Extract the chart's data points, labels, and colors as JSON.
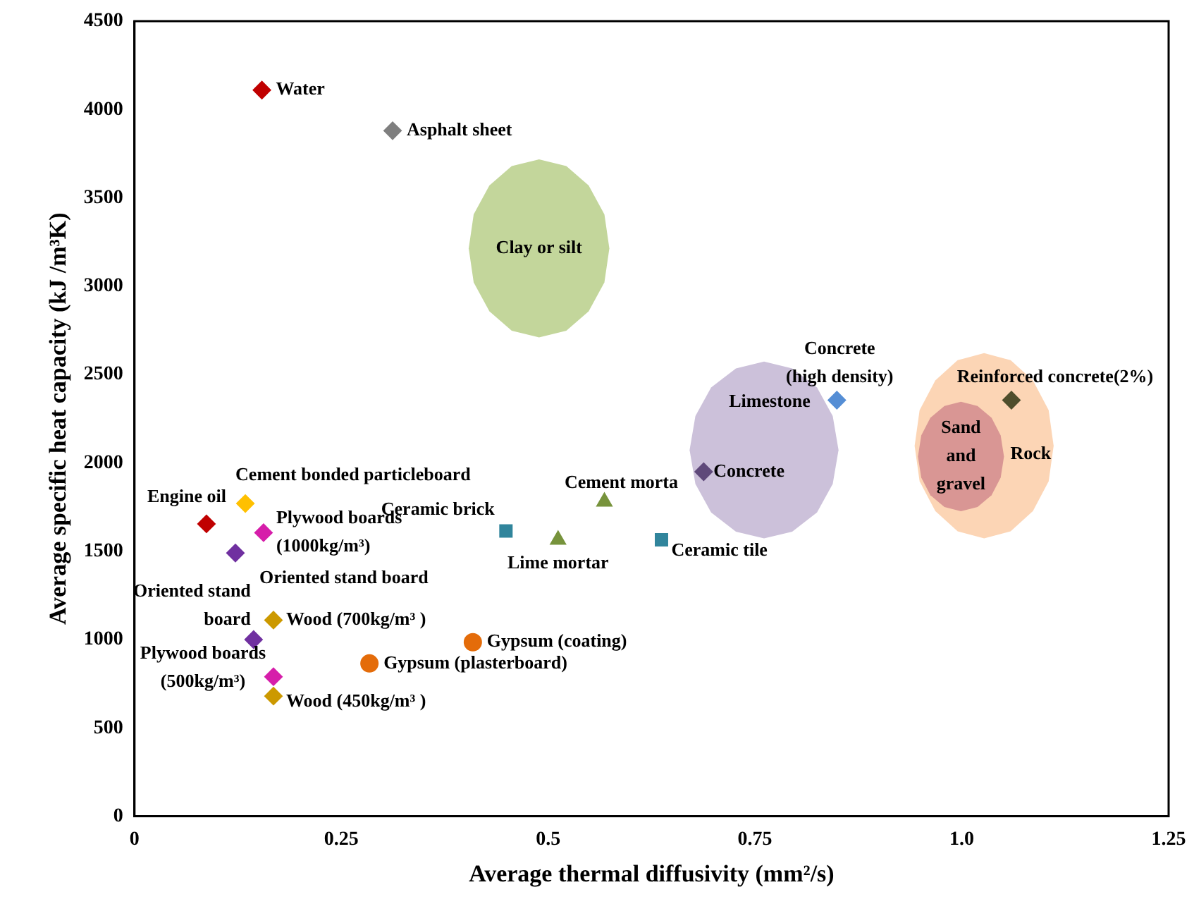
{
  "chart_data": {
    "type": "scatter",
    "xlabel": "Average thermal diffusivity (mm²/s)",
    "ylabel": "Average specific heat capacity (kJ /m³K)",
    "xlim": [
      0,
      1.25
    ],
    "xticks": [
      0,
      0.25,
      0.5,
      0.75,
      {
        "value": 1,
        "label": "1.0"
      },
      1.25
    ],
    "ylim": [
      0,
      4500
    ],
    "yticks": [
      0,
      500,
      1000,
      1500,
      2000,
      2500,
      3000,
      3500,
      4000,
      4500
    ],
    "grid": false,
    "legend": false,
    "series": [
      {
        "name": "Water",
        "color": "#c00000",
        "marker": "diamond",
        "x": [
          0.154
        ],
        "values": [
          4110
        ]
      },
      {
        "name": "Asphalt sheet",
        "color": "#7f7f7f",
        "marker": "diamond",
        "x": [
          0.312
        ],
        "values": [
          3880
        ]
      },
      {
        "name": "Cement bonded particleboard",
        "color": "#ffc000",
        "marker": "diamond",
        "x": [
          0.134
        ],
        "values": [
          1770
        ]
      },
      {
        "name": "Engine oil",
        "color": "#c00000",
        "marker": "diamond",
        "x": [
          0.087
        ],
        "values": [
          1655
        ]
      },
      {
        "name": "Plywood boards (1000kg/m³)",
        "color": "#d61eaa",
        "marker": "diamond",
        "x": [
          0.156
        ],
        "values": [
          1605
        ]
      },
      {
        "name": "Oriented stand board",
        "color": "#7030a0",
        "marker": "diamond",
        "x": [
          0.122
        ],
        "values": [
          1490
        ]
      },
      {
        "name": "Oriented stand board",
        "color": "#7030a0",
        "marker": "diamond",
        "x": [
          0.144
        ],
        "values": [
          1000
        ]
      },
      {
        "name": "Wood (700kg/m³ )",
        "color": "#cc9900",
        "marker": "diamond",
        "x": [
          0.168
        ],
        "values": [
          1110
        ]
      },
      {
        "name": "Plywood boards (500kg/m³)",
        "color": "#d61eaa",
        "marker": "diamond",
        "x": [
          0.168
        ],
        "values": [
          790
        ]
      },
      {
        "name": "Wood (450kg/m³ )",
        "color": "#cc9900",
        "marker": "diamond",
        "x": [
          0.168
        ],
        "values": [
          680
        ]
      },
      {
        "name": "Gypsum (coating)",
        "color": "#e46c0a",
        "marker": "circle",
        "x": [
          0.409
        ],
        "values": [
          985
        ]
      },
      {
        "name": "Gypsum (plasterboard)",
        "color": "#e46c0a",
        "marker": "circle",
        "x": [
          0.284
        ],
        "values": [
          865
        ]
      },
      {
        "name": "Ceramic brick",
        "color": "#31859c",
        "marker": "square",
        "x": [
          0.449
        ],
        "values": [
          1615
        ]
      },
      {
        "name": "Lime mortar",
        "color": "#77933c",
        "marker": "triangle",
        "x": [
          0.512
        ],
        "values": [
          1565
        ]
      },
      {
        "name": "Cement morta",
        "color": "#77933c",
        "marker": "triangle",
        "x": [
          0.568
        ],
        "values": [
          1780
        ]
      },
      {
        "name": "Ceramic tile",
        "color": "#31859c",
        "marker": "square",
        "x": [
          0.637
        ],
        "values": [
          1565
        ]
      },
      {
        "name": "Concrete",
        "color": "#5f497a",
        "marker": "diamond",
        "x": [
          0.688
        ],
        "values": [
          1950
        ]
      },
      {
        "name": "Concrete (high density)",
        "color": "#558ed5",
        "marker": "diamond",
        "x": [
          0.849
        ],
        "values": [
          2355
        ]
      },
      {
        "name": "Reinforced concrete(2%)",
        "color": "#4f4e2c",
        "marker": "diamond",
        "x": [
          1.06
        ],
        "values": [
          2355
        ]
      },
      {
        "name": "Clay or silt",
        "type": "area",
        "color": "#c3d69b",
        "x": [
          0.574,
          0.568,
          0.549,
          0.522,
          0.489,
          0.456,
          0.429,
          0.41,
          0.404,
          0.41,
          0.429,
          0.456,
          0.489,
          0.522,
          0.549,
          0.568
        ],
        "values": [
          3214,
          3407,
          3570,
          3680,
          3718,
          3680,
          3570,
          3407,
          3214,
          3021,
          2858,
          2748,
          2710,
          2748,
          2858,
          3021
        ]
      },
      {
        "name": "Limestone",
        "type": "area",
        "color": "#ccc1da",
        "x": [
          0.851,
          0.844,
          0.825,
          0.795,
          0.761,
          0.727,
          0.697,
          0.678,
          0.671,
          0.678,
          0.697,
          0.727,
          0.761,
          0.795,
          0.825,
          0.844
        ],
        "values": [
          2073,
          2265,
          2427,
          2535,
          2573,
          2535,
          2427,
          2265,
          2073,
          1881,
          1719,
          1611,
          1573,
          1611,
          1719,
          1881
        ]
      },
      {
        "name": "Rock",
        "type": "area",
        "color": "#fcd5b5",
        "x": [
          1.111,
          1.105,
          1.086,
          1.059,
          1.027,
          0.995,
          0.968,
          0.949,
          0.943,
          0.949,
          0.968,
          0.995,
          1.027,
          1.059,
          1.086,
          1.105
        ],
        "values": [
          2097,
          2298,
          2467,
          2581,
          2621,
          2581,
          2467,
          2298,
          2097,
          1896,
          1727,
          1613,
          1573,
          1613,
          1727,
          1896
        ]
      },
      {
        "name": "Sand and gravel",
        "type": "area",
        "color": "#d99694",
        "x": [
          1.051,
          1.047,
          1.036,
          1.019,
          0.999,
          0.979,
          0.962,
          0.951,
          0.947,
          0.951,
          0.962,
          0.979,
          0.999,
          1.019,
          1.036,
          1.047
        ],
        "values": [
          2036,
          2155,
          2255,
          2322,
          2346,
          2322,
          2255,
          2155,
          2036,
          1917,
          1817,
          1750,
          1726,
          1750,
          1817,
          1917
        ]
      }
    ]
  }
}
